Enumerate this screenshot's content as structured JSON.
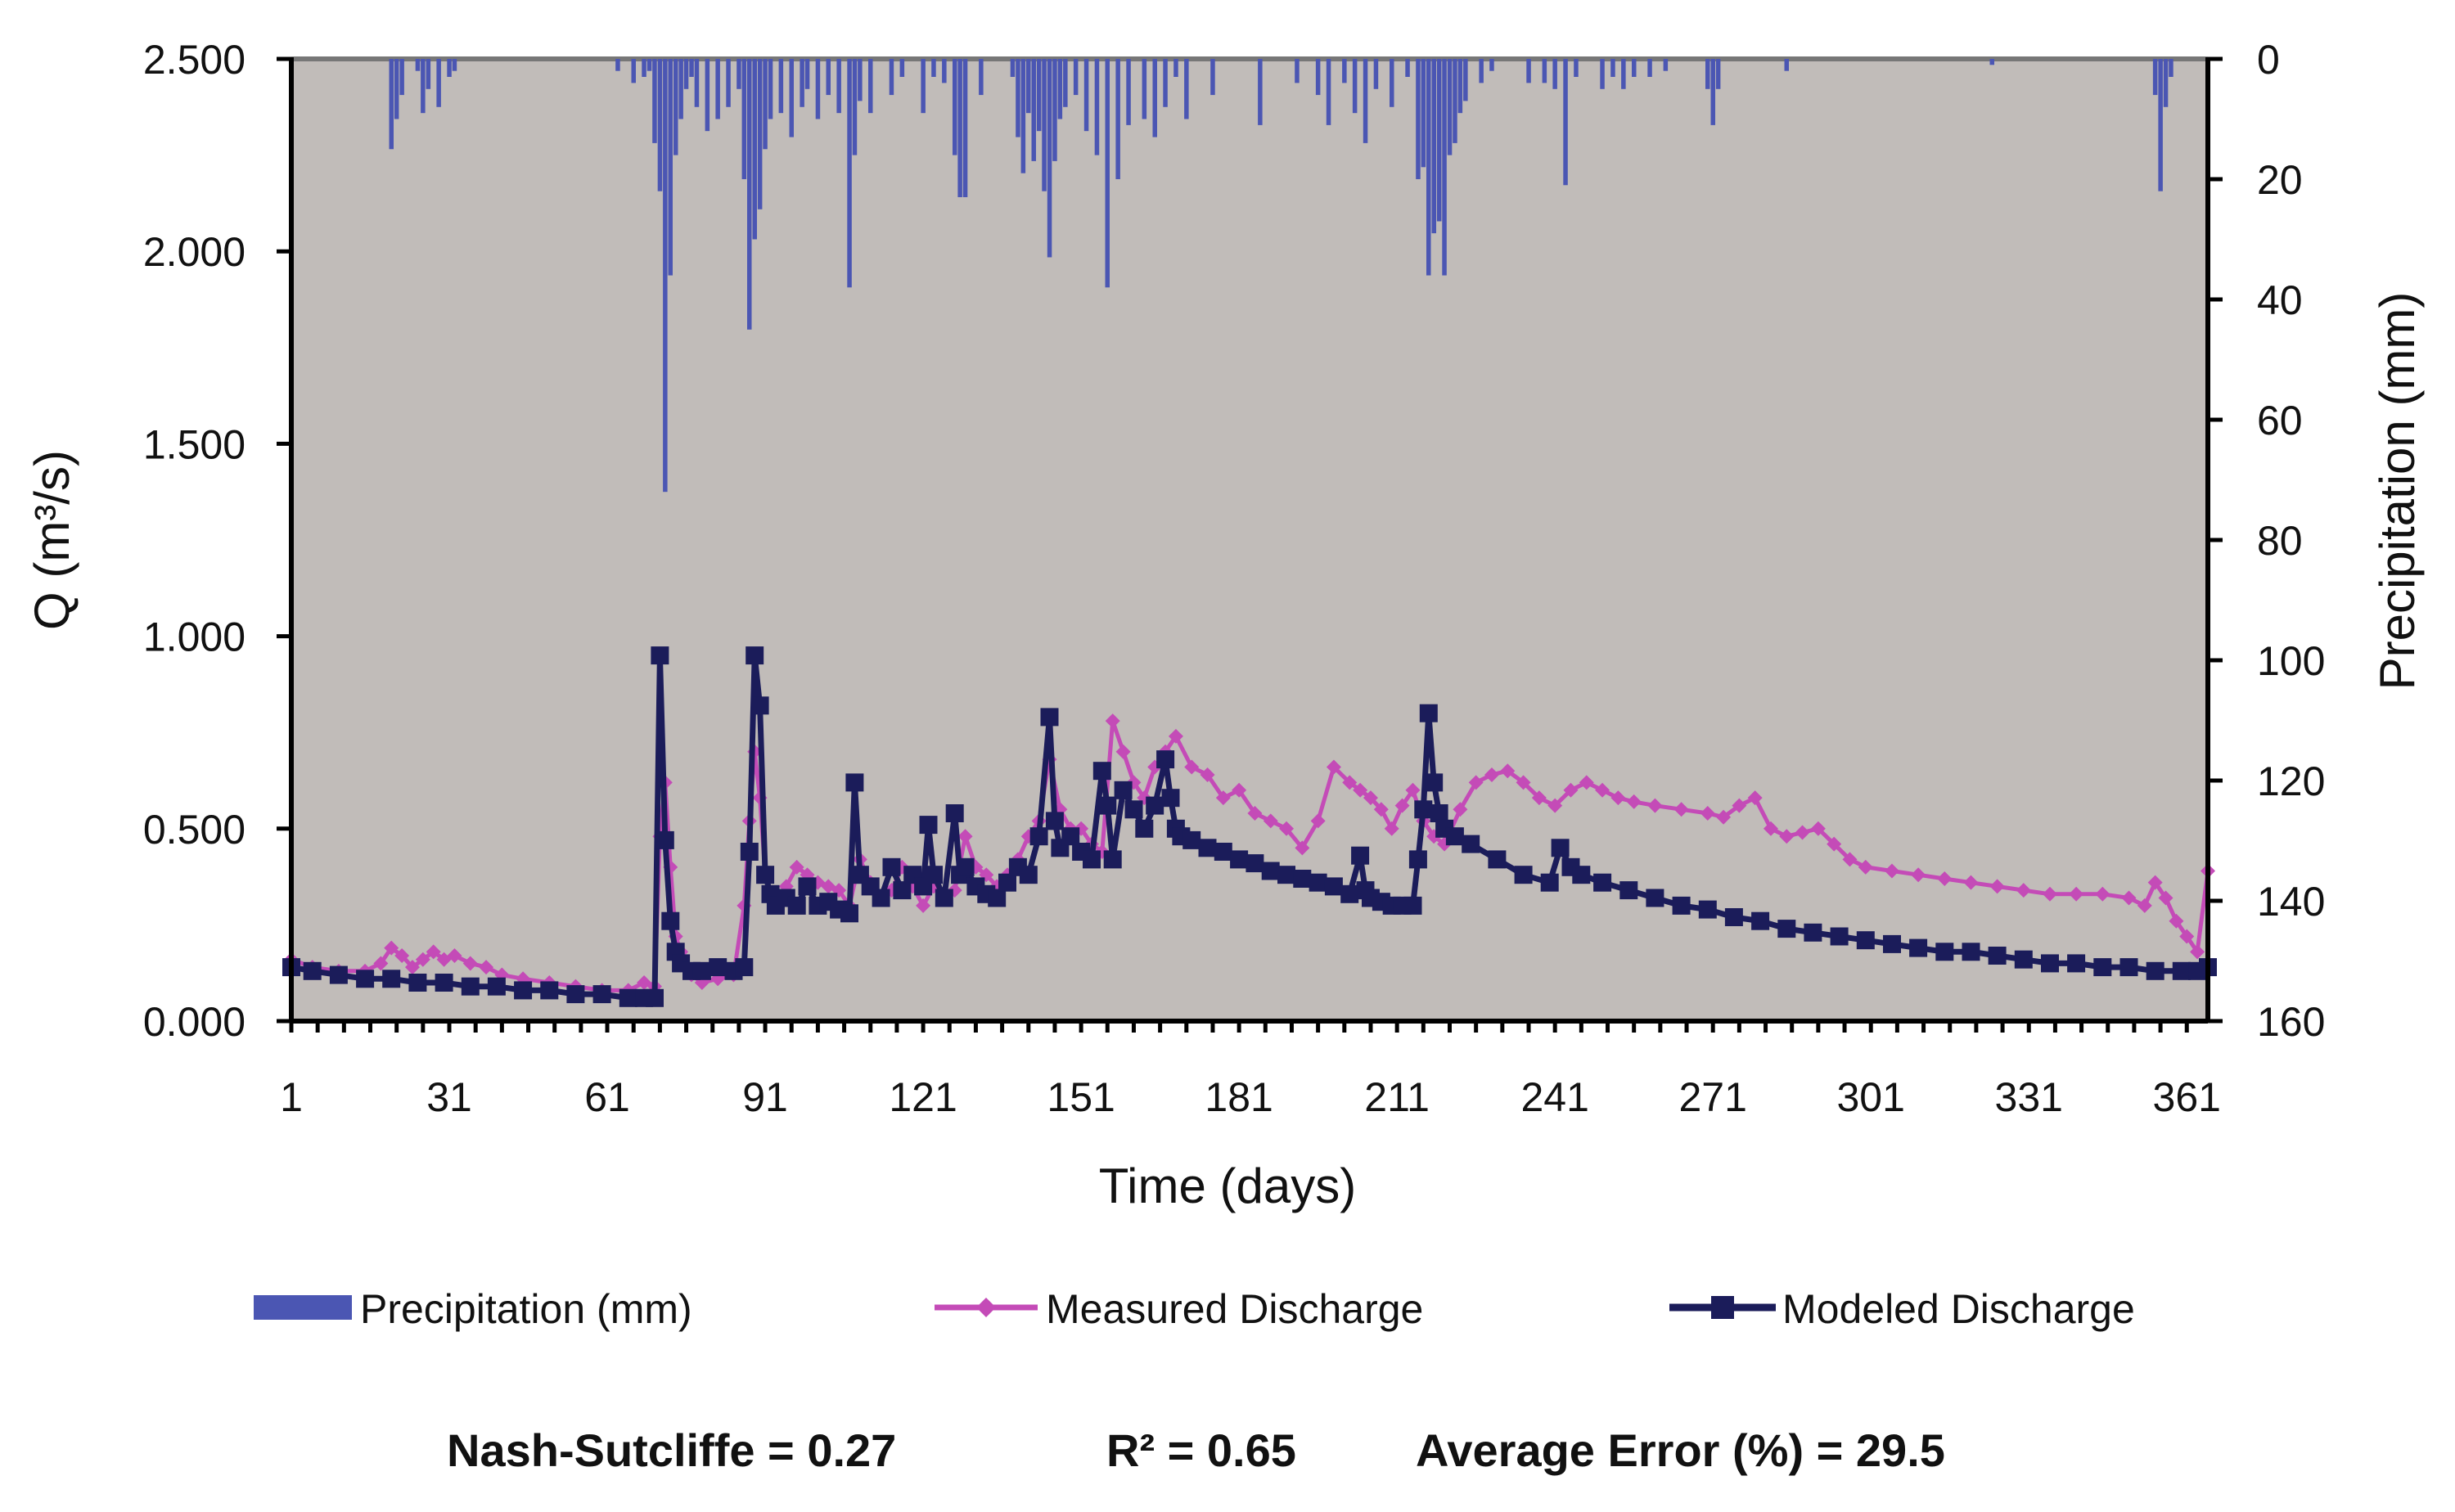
{
  "chart_data": {
    "type": "line",
    "title": "",
    "xlabel": "Time (days)",
    "ylabel": "Q (m³/s)",
    "y2label": "Precipitation (mm)",
    "xlim": [
      1,
      365
    ],
    "ylim": [
      0,
      2.5
    ],
    "y2lim": [
      0,
      160
    ],
    "y2_inverted": true,
    "x_tick_labels": [
      "1",
      "31",
      "61",
      "91",
      "121",
      "151",
      "181",
      "211",
      "241",
      "271",
      "301",
      "331",
      "361"
    ],
    "y_tick_labels": [
      "0.000",
      "0.500",
      "1.000",
      "1.500",
      "2.000",
      "2.500"
    ],
    "y2_tick_labels": [
      "0",
      "20",
      "40",
      "60",
      "80",
      "100",
      "120",
      "140",
      "160"
    ],
    "colors": {
      "plot_background": "#c1bcb9",
      "precipitation": "#4b56b3",
      "measured": "#c44bb7",
      "modeled": "#1b1c5a"
    },
    "legend": [
      {
        "name": "Precipitation (mm)",
        "style": "bar"
      },
      {
        "name": "Measured Discharge",
        "style": "diamond-line"
      },
      {
        "name": "Modeled Discharge",
        "style": "square-line"
      }
    ],
    "precipitation": {
      "name": "Precipitation (mm)",
      "days": [
        20,
        21,
        22,
        25,
        26,
        27,
        29,
        31,
        32,
        63,
        66,
        68,
        69,
        70,
        71,
        72,
        73,
        74,
        75,
        76,
        77,
        78,
        80,
        82,
        84,
        86,
        87,
        88,
        89,
        90,
        91,
        92,
        94,
        96,
        98,
        99,
        101,
        103,
        105,
        107,
        108,
        109,
        111,
        115,
        117,
        121,
        123,
        125,
        127,
        128,
        129,
        132,
        138,
        139,
        140,
        141,
        142,
        143,
        144,
        145,
        146,
        147,
        148,
        150,
        152,
        154,
        156,
        158,
        160,
        163,
        165,
        167,
        169,
        171,
        176,
        185,
        192,
        196,
        198,
        201,
        203,
        205,
        207,
        210,
        213,
        215,
        216,
        217,
        218,
        219,
        220,
        221,
        222,
        223,
        224,
        227,
        229,
        236,
        239,
        241,
        243,
        245,
        250,
        252,
        254,
        256,
        259,
        262,
        270,
        271,
        272,
        285,
        324,
        355,
        356,
        357,
        358,
        365
      ],
      "values": [
        15,
        10,
        6,
        2,
        9,
        5,
        8,
        3,
        2,
        2,
        4,
        3,
        2,
        14,
        22,
        72,
        36,
        16,
        10,
        5,
        3,
        8,
        12,
        10,
        8,
        5,
        20,
        45,
        30,
        25,
        15,
        10,
        9,
        13,
        8,
        5,
        10,
        6,
        9,
        38,
        16,
        7,
        9,
        6,
        3,
        9,
        3,
        4,
        16,
        23,
        23,
        6,
        3,
        13,
        19,
        9,
        17,
        12,
        22,
        33,
        17,
        10,
        8,
        6,
        12,
        16,
        38,
        20,
        11,
        10,
        13,
        8,
        3,
        10,
        6,
        11,
        4,
        6,
        11,
        4,
        9,
        14,
        5,
        8,
        3,
        20,
        18,
        36,
        29,
        27,
        36,
        16,
        14,
        9,
        7,
        4,
        2,
        4,
        4,
        5,
        21,
        3,
        5,
        3,
        5,
        3,
        3,
        2,
        5,
        11,
        5,
        2,
        1,
        6,
        22,
        8,
        3,
        8
      ]
    },
    "series": [
      {
        "name": "Measured Discharge",
        "x": [
          1,
          5,
          10,
          15,
          18,
          20,
          22,
          24,
          26,
          28,
          30,
          32,
          35,
          38,
          41,
          45,
          50,
          55,
          60,
          65,
          68,
          70,
          71,
          72,
          73,
          74,
          75,
          77,
          79,
          82,
          85,
          87,
          88,
          89,
          90,
          91,
          92,
          93,
          95,
          97,
          99,
          101,
          103,
          105,
          107,
          109,
          111,
          113,
          115,
          117,
          119,
          121,
          123,
          125,
          127,
          129,
          131,
          133,
          135,
          137,
          139,
          141,
          143,
          145,
          147,
          149,
          151,
          153,
          155,
          157,
          159,
          161,
          163,
          165,
          167,
          169,
          172,
          175,
          178,
          181,
          184,
          187,
          190,
          193,
          196,
          199,
          202,
          204,
          206,
          208,
          210,
          212,
          214,
          216,
          218,
          220,
          223,
          226,
          229,
          232,
          235,
          238,
          241,
          244,
          247,
          250,
          253,
          256,
          260,
          265,
          270,
          273,
          276,
          279,
          282,
          285,
          288,
          291,
          294,
          297,
          300,
          305,
          310,
          315,
          320,
          325,
          330,
          335,
          340,
          345,
          350,
          353,
          355,
          357,
          359,
          361,
          363,
          365
        ],
        "y": [
          0.16,
          0.14,
          0.13,
          0.13,
          0.15,
          0.19,
          0.17,
          0.14,
          0.16,
          0.18,
          0.16,
          0.17,
          0.15,
          0.14,
          0.12,
          0.11,
          0.1,
          0.09,
          0.08,
          0.08,
          0.1,
          0.09,
          0.48,
          0.62,
          0.4,
          0.22,
          0.18,
          0.12,
          0.1,
          0.11,
          0.12,
          0.3,
          0.52,
          0.7,
          0.58,
          0.38,
          0.32,
          0.3,
          0.35,
          0.4,
          0.38,
          0.36,
          0.35,
          0.34,
          0.3,
          0.42,
          0.36,
          0.32,
          0.34,
          0.4,
          0.35,
          0.3,
          0.35,
          0.33,
          0.34,
          0.48,
          0.4,
          0.38,
          0.35,
          0.38,
          0.42,
          0.48,
          0.52,
          0.68,
          0.55,
          0.5,
          0.5,
          0.46,
          0.44,
          0.78,
          0.7,
          0.62,
          0.58,
          0.66,
          0.7,
          0.74,
          0.66,
          0.64,
          0.58,
          0.6,
          0.54,
          0.52,
          0.5,
          0.45,
          0.52,
          0.66,
          0.62,
          0.6,
          0.58,
          0.55,
          0.5,
          0.56,
          0.6,
          0.52,
          0.48,
          0.46,
          0.55,
          0.62,
          0.64,
          0.65,
          0.62,
          0.58,
          0.56,
          0.6,
          0.62,
          0.6,
          0.58,
          0.57,
          0.56,
          0.55,
          0.54,
          0.53,
          0.56,
          0.58,
          0.5,
          0.48,
          0.49,
          0.5,
          0.46,
          0.42,
          0.4,
          0.39,
          0.38,
          0.37,
          0.36,
          0.35,
          0.34,
          0.33,
          0.33,
          0.33,
          0.32,
          0.3,
          0.36,
          0.32,
          0.26,
          0.22,
          0.18,
          0.39
        ]
      },
      {
        "name": "Modeled Discharge",
        "x": [
          1,
          5,
          10,
          15,
          20,
          25,
          30,
          35,
          40,
          45,
          50,
          55,
          60,
          65,
          68,
          70,
          71,
          72,
          73,
          74,
          75,
          77,
          79,
          82,
          85,
          87,
          88,
          89,
          90,
          91,
          92,
          93,
          95,
          97,
          99,
          101,
          103,
          105,
          107,
          108,
          109,
          111,
          113,
          115,
          117,
          119,
          121,
          122,
          123,
          125,
          127,
          128,
          129,
          131,
          133,
          135,
          137,
          139,
          141,
          143,
          145,
          146,
          147,
          149,
          151,
          153,
          155,
          156,
          157,
          159,
          161,
          163,
          165,
          167,
          168,
          169,
          170,
          172,
          175,
          178,
          181,
          184,
          187,
          190,
          193,
          196,
          199,
          202,
          204,
          205,
          206,
          208,
          210,
          212,
          214,
          215,
          216,
          217,
          218,
          219,
          220,
          222,
          225,
          230,
          235,
          240,
          242,
          244,
          246,
          250,
          255,
          260,
          265,
          270,
          275,
          280,
          285,
          290,
          295,
          300,
          305,
          310,
          315,
          320,
          325,
          330,
          335,
          340,
          345,
          350,
          355,
          360,
          363,
          365
        ],
        "y": [
          0.14,
          0.13,
          0.12,
          0.11,
          0.11,
          0.1,
          0.1,
          0.09,
          0.09,
          0.08,
          0.08,
          0.07,
          0.07,
          0.06,
          0.06,
          0.06,
          0.95,
          0.47,
          0.26,
          0.18,
          0.15,
          0.13,
          0.13,
          0.14,
          0.13,
          0.14,
          0.44,
          0.95,
          0.82,
          0.38,
          0.33,
          0.3,
          0.32,
          0.3,
          0.35,
          0.3,
          0.31,
          0.29,
          0.28,
          0.62,
          0.38,
          0.35,
          0.32,
          0.4,
          0.34,
          0.38,
          0.35,
          0.51,
          0.38,
          0.32,
          0.54,
          0.38,
          0.4,
          0.35,
          0.33,
          0.32,
          0.36,
          0.4,
          0.38,
          0.48,
          0.79,
          0.52,
          0.45,
          0.48,
          0.44,
          0.42,
          0.65,
          0.56,
          0.42,
          0.6,
          0.55,
          0.5,
          0.56,
          0.68,
          0.58,
          0.5,
          0.48,
          0.47,
          0.45,
          0.44,
          0.42,
          0.41,
          0.39,
          0.38,
          0.37,
          0.36,
          0.35,
          0.33,
          0.43,
          0.34,
          0.32,
          0.31,
          0.3,
          0.3,
          0.3,
          0.42,
          0.55,
          0.8,
          0.62,
          0.54,
          0.5,
          0.48,
          0.46,
          0.42,
          0.38,
          0.36,
          0.45,
          0.4,
          0.38,
          0.36,
          0.34,
          0.32,
          0.3,
          0.29,
          0.27,
          0.26,
          0.24,
          0.23,
          0.22,
          0.21,
          0.2,
          0.19,
          0.18,
          0.18,
          0.17,
          0.16,
          0.15,
          0.15,
          0.14,
          0.14,
          0.13,
          0.13,
          0.13,
          0.14
        ]
      }
    ],
    "stats": {
      "nash": "Nash-Sutcliffe =  0.27",
      "r2": "R² = 0.65",
      "avg_error": "Average Error (%) =  29.5"
    }
  }
}
